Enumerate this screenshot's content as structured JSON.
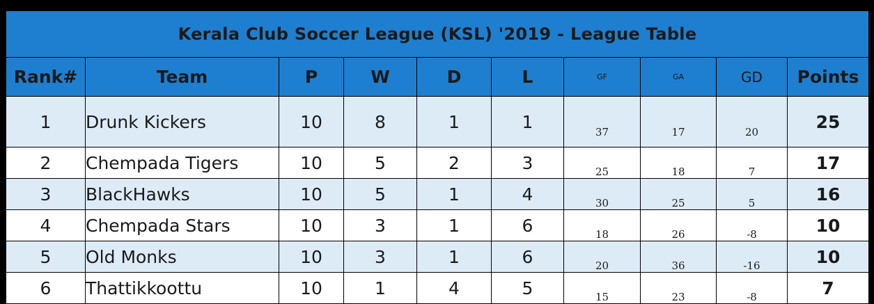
{
  "title": "Kerala Club Soccer League (KSL) '2019 -  League Table",
  "columns": {
    "rank": "Rank#",
    "team": "Team",
    "p": "P",
    "w": "W",
    "d": "D",
    "l": "L",
    "gf": "GF",
    "ga": "GA",
    "gd": "GD",
    "points": "Points"
  },
  "rows": [
    {
      "rank": "1",
      "team": "Drunk Kickers",
      "p": "10",
      "w": "8",
      "d": "1",
      "l": "1",
      "gf": "37",
      "ga": "17",
      "gd": "20",
      "points": "25"
    },
    {
      "rank": "2",
      "team": "Chempada Tigers",
      "p": "10",
      "w": "5",
      "d": "2",
      "l": "3",
      "gf": "25",
      "ga": "18",
      "gd": "7",
      "points": "17"
    },
    {
      "rank": "3",
      "team": "BlackHawks",
      "p": "10",
      "w": "5",
      "d": "1",
      "l": "4",
      "gf": "30",
      "ga": "25",
      "gd": "5",
      "points": "16"
    },
    {
      "rank": "4",
      "team": "Chempada Stars",
      "p": "10",
      "w": "3",
      "d": "1",
      "l": "6",
      "gf": "18",
      "ga": "26",
      "gd": "-8",
      "points": "10"
    },
    {
      "rank": "5",
      "team": "Old Monks",
      "p": "10",
      "w": "3",
      "d": "1",
      "l": "6",
      "gf": "20",
      "ga": "36",
      "gd": "-16",
      "points": "10"
    },
    {
      "rank": "6",
      "team": "Thattikkoottu",
      "p": "10",
      "w": "1",
      "d": "4",
      "l": "5",
      "gf": "15",
      "ga": "23",
      "gd": "-8",
      "points": "7"
    }
  ],
  "colors": {
    "header_blue": "#1e7fd0",
    "row_alt": "#ddebf7",
    "row_white": "#ffffff",
    "background": "#000000"
  }
}
